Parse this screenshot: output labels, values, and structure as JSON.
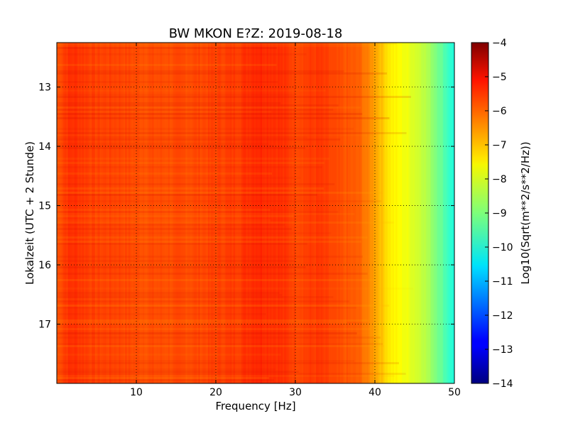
{
  "chart_data": {
    "type": "heatmap",
    "title": "BW MKON E?Z: 2019-08-18",
    "xlabel": "Frequency [Hz]",
    "ylabel": "Lokalzeit (UTC + 2 Stunde)",
    "xlim": [
      0,
      50
    ],
    "ylim": [
      12.25,
      18.0
    ],
    "y_inverted": true,
    "xticks": [
      10,
      20,
      30,
      40,
      50
    ],
    "yticks": [
      13,
      14,
      15,
      16,
      17
    ],
    "grid": true,
    "grid_style": "dotted",
    "colorbar": {
      "label": "Log10(Sqrt(m**2/s**2/Hz))",
      "min": -14,
      "max": -4,
      "ticks": [
        -4,
        -5,
        -6,
        -7,
        -8,
        -9,
        -10,
        -11,
        -12,
        -13,
        -14
      ],
      "colormap": "jet"
    },
    "frequency_profile": {
      "frequencies_hz": [
        0,
        1,
        2,
        5,
        8,
        10,
        15,
        20,
        23,
        25,
        28,
        30,
        33,
        35,
        38,
        40,
        42,
        44,
        46,
        48,
        50
      ],
      "log10_amplitude": [
        -6.1,
        -5.8,
        -5.7,
        -5.9,
        -5.9,
        -6.0,
        -6.0,
        -5.9,
        -5.8,
        -5.6,
        -5.7,
        -5.9,
        -5.8,
        -6.0,
        -6.2,
        -6.8,
        -7.6,
        -7.9,
        -8.3,
        -9.1,
        -10.0
      ]
    }
  }
}
